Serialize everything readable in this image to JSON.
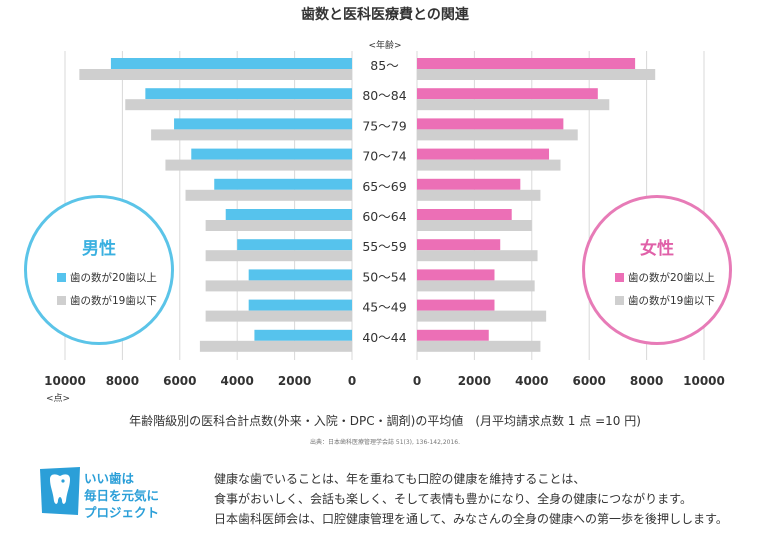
{
  "title": "歯数と医科医療費との関連",
  "age_header": "<年齢>",
  "unit_label": "<点>",
  "caption": "年齢階級別の医科合計点数(外来・入院・DPC・調剤)の平均値　(月平均請求点数 1 点 =10 円)",
  "source": "出典：日本歯科医療管理学会誌 51(3), 136-142,2016.",
  "colors": {
    "male_20plus": "#56c3ed",
    "female_20plus": "#ec6fb6",
    "teeth_19minus": "#cfcfcf",
    "male_ring": "#5bc4e8",
    "female_ring": "#e77bb7"
  },
  "legend": {
    "male": {
      "title": "男性",
      "items": [
        "歯の数が20歯以上",
        "歯の数が19歯以下"
      ]
    },
    "female": {
      "title": "女性",
      "items": [
        "歯の数が20歯以上",
        "歯の数が19歯以下"
      ]
    }
  },
  "chart_data": {
    "type": "bar",
    "orientation": "horizontal-butterfly",
    "title": "歯数と医科医療費との関連",
    "categories": [
      "85～",
      "80～84",
      "75～79",
      "70～74",
      "65～69",
      "60～64",
      "55～59",
      "50～54",
      "45～49",
      "40～44"
    ],
    "x_ticks": [
      "10000",
      "8000",
      "6000",
      "4000",
      "2000",
      "0"
    ],
    "x_range": [
      0,
      10000
    ],
    "grid": true,
    "series": [
      {
        "name": "歯の数が20歯以上",
        "group": "男性",
        "side": "left",
        "values": [
          8400,
          7200,
          6200,
          5600,
          4800,
          4400,
          4000,
          3600,
          3600,
          3400
        ]
      },
      {
        "name": "歯の数が19歯以下",
        "group": "男性",
        "side": "left",
        "values": [
          9500,
          7900,
          7000,
          6500,
          5800,
          5100,
          5100,
          5100,
          5100,
          5300
        ]
      },
      {
        "name": "歯の数が20歯以上",
        "group": "女性",
        "side": "right",
        "values": [
          7600,
          6300,
          5100,
          4600,
          3600,
          3300,
          2900,
          2700,
          2700,
          2500
        ]
      },
      {
        "name": "歯の数が19歯以下",
        "group": "女性",
        "side": "right",
        "values": [
          8300,
          6700,
          5600,
          5000,
          4300,
          4000,
          4200,
          4100,
          4500,
          4300
        ]
      }
    ]
  },
  "banner": {
    "lines": [
      "いい歯は",
      "毎日を元気に",
      "プロジェクト"
    ],
    "icon": "tooth-icon"
  },
  "body_text": [
    "健康な歯でいることは、年を重ねても口腔の健康を維持することは、",
    "食事がおいしく、会話も楽しく、そして表情も豊かになり、全身の健康につながります。",
    "日本歯科医師会は、口腔健康管理を通して、みなさんの全身の健康への第一歩を後押しします。"
  ]
}
